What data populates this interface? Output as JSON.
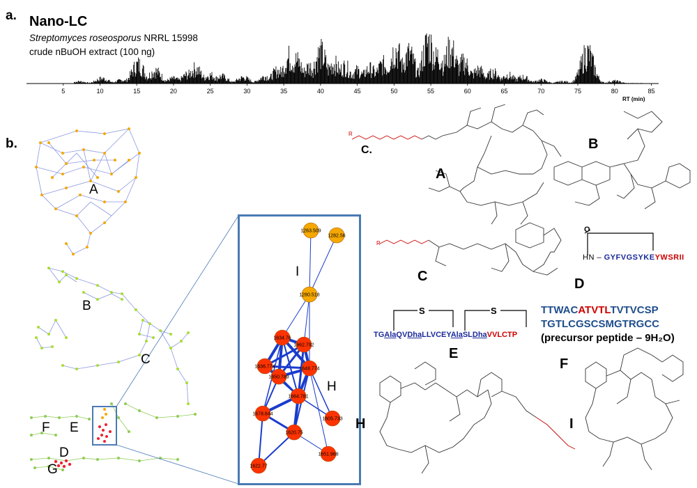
{
  "panel_a": {
    "label": "a.",
    "title": "Nano-LC",
    "organism_italic": "Streptomyces roseosporus",
    "organism_strain": " NRRL 15998",
    "extract": "crude nBuOH extract (100 ng)",
    "axis_label": "RT (min)"
  },
  "chart_data": {
    "type": "area",
    "title": "Nano-LC",
    "xlabel": "RT (min)",
    "ylabel": "",
    "xlim": [
      0,
      86
    ],
    "x_ticks": [
      "5",
      "10",
      "15",
      "20",
      "25",
      "30",
      "35",
      "40",
      "45",
      "50",
      "55",
      "60",
      "65",
      "70",
      "75",
      "80",
      "85"
    ],
    "peaks": [
      {
        "x": 7.2,
        "y": 0.05
      },
      {
        "x": 10.3,
        "y": 0.12
      },
      {
        "x": 13.0,
        "y": 0.08
      },
      {
        "x": 15.2,
        "y": 0.45
      },
      {
        "x": 17.5,
        "y": 0.3
      },
      {
        "x": 20.0,
        "y": 0.12
      },
      {
        "x": 22.0,
        "y": 0.22
      },
      {
        "x": 23.0,
        "y": 0.35
      },
      {
        "x": 25.0,
        "y": 0.2
      },
      {
        "x": 26.5,
        "y": 0.17
      },
      {
        "x": 29.5,
        "y": 0.14
      },
      {
        "x": 32.5,
        "y": 0.17
      },
      {
        "x": 34.2,
        "y": 0.3
      },
      {
        "x": 35.8,
        "y": 0.62
      },
      {
        "x": 36.7,
        "y": 0.55
      },
      {
        "x": 38.5,
        "y": 0.4
      },
      {
        "x": 40.0,
        "y": 0.72
      },
      {
        "x": 41.8,
        "y": 0.47
      },
      {
        "x": 43.3,
        "y": 0.4
      },
      {
        "x": 45.0,
        "y": 0.3
      },
      {
        "x": 46.7,
        "y": 0.35
      },
      {
        "x": 48.5,
        "y": 0.45
      },
      {
        "x": 50.2,
        "y": 0.8
      },
      {
        "x": 52.0,
        "y": 0.7
      },
      {
        "x": 54.7,
        "y": 0.97
      },
      {
        "x": 56.0,
        "y": 0.65
      },
      {
        "x": 57.7,
        "y": 0.8
      },
      {
        "x": 59.5,
        "y": 0.5
      },
      {
        "x": 61.5,
        "y": 0.32
      },
      {
        "x": 63.5,
        "y": 0.26
      },
      {
        "x": 65.5,
        "y": 0.2
      },
      {
        "x": 67.5,
        "y": 0.15
      },
      {
        "x": 70.0,
        "y": 0.08
      },
      {
        "x": 73.0,
        "y": 0.05
      },
      {
        "x": 76.3,
        "y": 0.72
      },
      {
        "x": 80.0,
        "y": 0.06
      }
    ]
  },
  "panel_b": {
    "label": "b.",
    "cluster_labels": [
      "A",
      "B",
      "C",
      "D",
      "E",
      "F",
      "G"
    ],
    "zoom_labels": {
      "I": "I",
      "H": "H"
    },
    "zoom_nodes": [
      {
        "mz": "1263.509",
        "cluster": "I"
      },
      {
        "mz": "1282.56",
        "cluster": "I"
      },
      {
        "mz": "1280.518",
        "cluster": "I"
      },
      {
        "mz": "1634.76",
        "cluster": "H"
      },
      {
        "mz": "1662.792",
        "cluster": "H"
      },
      {
        "mz": "1636.774",
        "cluster": "H"
      },
      {
        "mz": "1650.789",
        "cluster": "H"
      },
      {
        "mz": "1648.774",
        "cluster": "H"
      },
      {
        "mz": "1664.781",
        "cluster": "H"
      },
      {
        "mz": "1678.844",
        "cluster": "H"
      },
      {
        "mz": "1605.733",
        "cluster": "H"
      },
      {
        "mz": "1620.75",
        "cluster": "H"
      },
      {
        "mz": "1651.968",
        "cluster": "H"
      },
      {
        "mz": "1622.77",
        "cluster": "H"
      }
    ],
    "node_colors": {
      "orange": "#f5a800",
      "red": "#ff3300",
      "edge": "#1a3ccc",
      "box": "#4a7ab3"
    }
  },
  "structures": {
    "A": "A",
    "B": "B",
    "C_label": "C",
    "C_dot": "C.",
    "D": "D",
    "E": "E",
    "F": "F",
    "H": "H",
    "I": "I",
    "R": "R"
  },
  "peptide_D": {
    "prefix": "HN –",
    "seq_blue": "GYFVGSYKE",
    "seq_red": "YWSRII"
  },
  "peptide_E": {
    "s1": "S",
    "s2": "S",
    "parts": [
      {
        "t": "TG",
        "c": "blue",
        "u": false
      },
      {
        "t": "A",
        "c": "blue",
        "u": true
      },
      {
        "t": "la",
        "c": "blue",
        "u": true
      },
      {
        "t": "QV",
        "c": "blue",
        "u": false
      },
      {
        "t": "Dha",
        "c": "blue",
        "u": true
      },
      {
        "t": "LLVCEY",
        "c": "blue",
        "u": false
      },
      {
        "t": "Ala",
        "c": "blue",
        "u": true
      },
      {
        "t": "SL",
        "c": "blue",
        "u": false
      },
      {
        "t": "Dha",
        "c": "blue",
        "u": true
      },
      {
        "t": "VVLCTP",
        "c": "red",
        "u": false
      }
    ]
  },
  "peptide_F": {
    "line1_a": "TTWAC",
    "line1_b": "ATVTL",
    "line1_c": "TVTVCSP",
    "line2": "TGTLCGSCSMGTRGCC",
    "line3": "(precursor peptide – 9H₂O)"
  }
}
